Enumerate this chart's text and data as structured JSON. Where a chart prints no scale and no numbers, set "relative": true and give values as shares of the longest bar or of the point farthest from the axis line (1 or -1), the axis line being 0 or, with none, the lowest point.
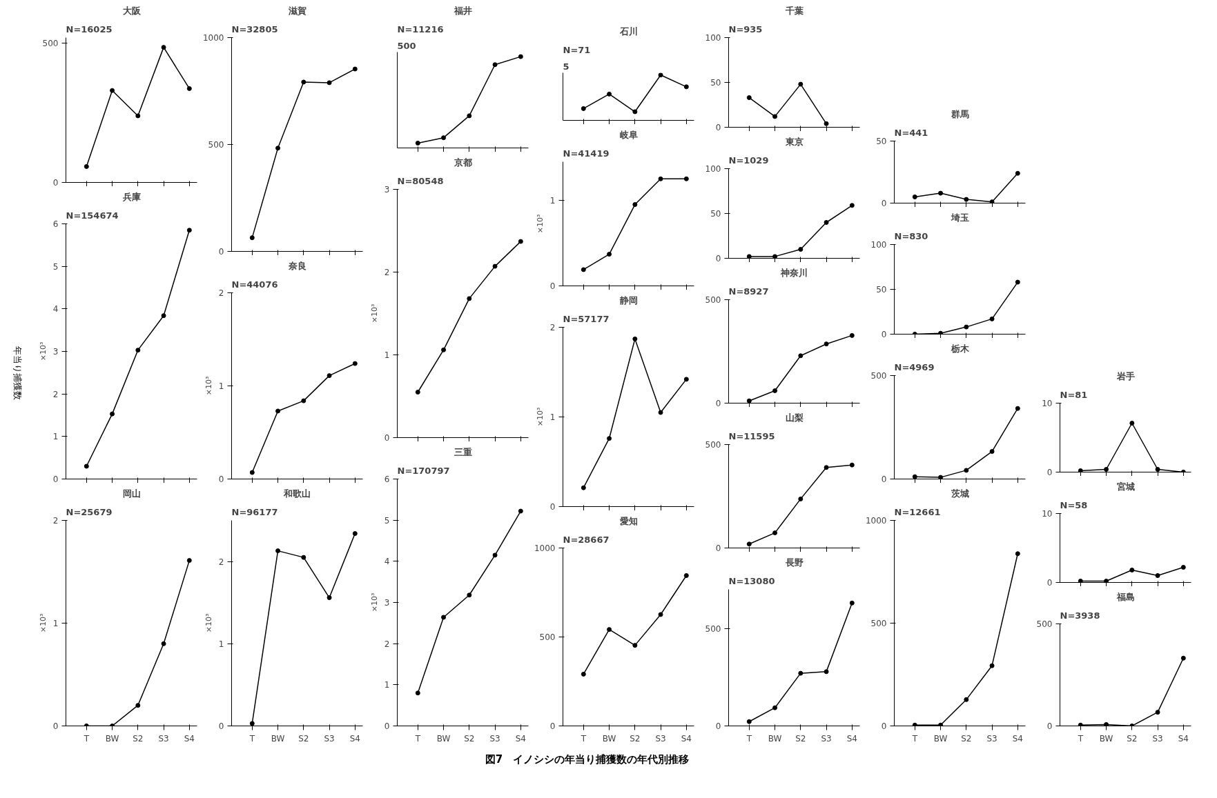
{
  "chart_data": [
    {
      "type": "line",
      "title": "大阪",
      "annotations": [
        "N=16025"
      ],
      "categories": [
        null,
        null,
        null,
        null,
        null
      ],
      "values": [
        57,
        330,
        239,
        485,
        337
      ],
      "ylim": [
        0,
        520
      ],
      "yticks": [
        0,
        500
      ],
      "tick_labels": "y",
      "marker": "circle",
      "color": "#000000"
    },
    {
      "type": "line",
      "title": "兵庫",
      "ylabel": "×10³",
      "annotations": [
        "N=154674"
      ],
      "categories": [
        null,
        null,
        null,
        null,
        null
      ],
      "values": [
        0.3,
        1.53,
        3.03,
        3.84,
        5.85
      ],
      "ylim": [
        0,
        6
      ],
      "yticks": [
        0,
        1,
        2,
        3,
        4,
        5,
        6
      ],
      "tick_labels": "y",
      "marker": "circle",
      "color": "#000000"
    },
    {
      "type": "line",
      "title": "岡山",
      "ylabel": "×10³",
      "annotations": [
        "N=25679"
      ],
      "categories": [
        "T",
        "BW",
        "S2",
        "S3",
        "S4"
      ],
      "values": [
        0,
        0,
        0.2,
        0.8,
        1.61
      ],
      "ylim": [
        0,
        2
      ],
      "yticks": [
        0,
        1,
        2
      ],
      "marker": "circle",
      "color": "#000000"
    },
    {
      "type": "line",
      "title": "滋賀",
      "annotations": [
        "N=32805"
      ],
      "categories": [
        null,
        null,
        null,
        null,
        null
      ],
      "values": [
        64,
        483,
        792,
        789,
        853
      ],
      "ylim": [
        0,
        1000
      ],
      "yticks": [
        0,
        500,
        1000
      ],
      "tick_labels": "y",
      "marker": "circle",
      "color": "#000000"
    },
    {
      "type": "line",
      "title": "奈良",
      "ylabel": "×10³",
      "annotations": [
        "N=44076"
      ],
      "categories": [
        null,
        null,
        null,
        null,
        null
      ],
      "values": [
        0.07,
        0.73,
        0.84,
        1.11,
        1.24
      ],
      "ylim": [
        0,
        2
      ],
      "yticks": [
        0,
        1,
        2
      ],
      "tick_labels": "y",
      "marker": "circle",
      "color": "#000000"
    },
    {
      "type": "line",
      "title": "和歌山",
      "ylabel": "×10³",
      "annotations": [
        "N=96177"
      ],
      "categories": [
        "T",
        "BW",
        "S2",
        "S3",
        "S4"
      ],
      "values": [
        0.03,
        2.13,
        2.05,
        1.56,
        2.34
      ],
      "ylim": [
        0,
        2.5
      ],
      "yticks": [
        0,
        1,
        2
      ],
      "marker": "circle",
      "color": "#000000"
    },
    {
      "type": "line",
      "title": "福井",
      "annotations": [
        "500",
        "N=11216"
      ],
      "categories": [
        null,
        null,
        null,
        null,
        null
      ],
      "values": [
        0.053,
        0.112,
        0.352,
        0.912,
        1
      ],
      "relative": true,
      "tick_labels": false,
      "marker": "circle",
      "color": "#000000"
    },
    {
      "type": "line",
      "title": "京都",
      "ylabel": "×10³",
      "annotations": [
        "N=80548"
      ],
      "categories": [
        null,
        null,
        null,
        null,
        null
      ],
      "values": [
        0.55,
        1.06,
        1.68,
        2.07,
        2.37
      ],
      "ylim": [
        0,
        3
      ],
      "yticks": [
        0,
        1,
        2,
        3
      ],
      "tick_labels": "y",
      "marker": "circle",
      "color": "#000000"
    },
    {
      "type": "line",
      "title": "三重",
      "ylabel": "×10³",
      "annotations": [
        "N=170797"
      ],
      "categories": [
        "T",
        "BW",
        "S2",
        "S3",
        "S4"
      ],
      "values": [
        0.8,
        2.64,
        3.18,
        4.15,
        5.22
      ],
      "ylim": [
        0,
        6
      ],
      "yticks": [
        0,
        1,
        2,
        3,
        4,
        5,
        6
      ],
      "marker": "circle",
      "color": "#000000"
    },
    {
      "type": "line",
      "title": "石川",
      "annotations": [
        "5",
        "N=71"
      ],
      "categories": [
        null,
        null,
        null,
        null,
        null
      ],
      "values": [
        0.26,
        0.58,
        0.19,
        1,
        0.74
      ],
      "relative": true,
      "tick_labels": false,
      "marker": "circle",
      "color": "#000000"
    },
    {
      "type": "line",
      "title": "岐阜",
      "ylabel": "×10³",
      "annotations": [
        "N=41419"
      ],
      "categories": [
        null,
        null,
        null,
        null,
        null
      ],
      "values": [
        0.19,
        0.37,
        0.95,
        1.25,
        1.25
      ],
      "ylim": [
        0,
        1.45
      ],
      "yticks": [
        0,
        1
      ],
      "tick_labels": "y",
      "marker": "circle",
      "color": "#000000"
    },
    {
      "type": "line",
      "title": "静岡",
      "ylabel": "×10³",
      "annotations": [
        "N=57177"
      ],
      "categories": [
        null,
        null,
        null,
        null,
        null
      ],
      "values": [
        0.21,
        0.76,
        1.87,
        1.05,
        1.42
      ],
      "ylim": [
        0,
        2
      ],
      "yticks": [
        0,
        1,
        2
      ],
      "tick_labels": "y",
      "marker": "circle",
      "color": "#000000"
    },
    {
      "type": "line",
      "title": "愛知",
      "annotations": [
        "N=28667"
      ],
      "categories": [
        "T",
        "BW",
        "S2",
        "S3",
        "S4"
      ],
      "values": [
        291,
        542,
        453,
        626,
        845
      ],
      "ylim": [
        0,
        1000
      ],
      "yticks": [
        0,
        500,
        1000
      ],
      "marker": "circle",
      "color": "#000000"
    },
    {
      "type": "line",
      "title": "千葉",
      "annotations": [
        "N=935"
      ],
      "categories": [
        null,
        null,
        null,
        null,
        null
      ],
      "values": [
        33,
        12,
        48,
        4,
        null
      ],
      "ylim": [
        0,
        100
      ],
      "yticks": [
        0,
        50,
        100
      ],
      "tick_labels": "y",
      "marker": "circle",
      "color": "#000000"
    },
    {
      "type": "line",
      "title": "東京",
      "annotations": [
        "N=1029"
      ],
      "categories": [
        null,
        null,
        null,
        null,
        null
      ],
      "values": [
        2,
        2,
        10,
        40,
        59
      ],
      "ylim": [
        0,
        100
      ],
      "yticks": [
        0,
        50,
        100
      ],
      "tick_labels": "y",
      "marker": "circle",
      "color": "#000000"
    },
    {
      "type": "line",
      "title": "神奈川",
      "annotations": [
        "N=8927"
      ],
      "categories": [
        null,
        null,
        null,
        null,
        null
      ],
      "values": [
        11,
        60,
        229,
        286,
        327
      ],
      "ylim": [
        0,
        500
      ],
      "yticks": [
        0,
        500
      ],
      "tick_labels": "y",
      "marker": "circle",
      "color": "#000000"
    },
    {
      "type": "line",
      "title": "山梨",
      "annotations": [
        "N=11595"
      ],
      "categories": [
        null,
        null,
        null,
        null,
        null
      ],
      "values": [
        19,
        73,
        237,
        389,
        401
      ],
      "ylim": [
        0,
        500
      ],
      "yticks": [
        0,
        500
      ],
      "tick_labels": "y",
      "marker": "circle",
      "color": "#000000"
    },
    {
      "type": "line",
      "title": "長野",
      "annotations": [
        "N=13080"
      ],
      "categories": [
        "T",
        "BW",
        "S2",
        "S3",
        "S4"
      ],
      "values": [
        22,
        93,
        270,
        278,
        630
      ],
      "ylim": [
        0,
        700
      ],
      "yticks": [
        0,
        500
      ],
      "marker": "circle",
      "color": "#000000"
    },
    {
      "type": "line",
      "title": "群馬",
      "annotations": [
        "N=441"
      ],
      "categories": [
        null,
        null,
        null,
        null,
        null
      ],
      "values": [
        5,
        8,
        3,
        1,
        24
      ],
      "ylim": [
        0,
        50
      ],
      "yticks": [
        0,
        50
      ],
      "tick_labels": "y",
      "marker": "circle",
      "color": "#000000"
    },
    {
      "type": "line",
      "title": "埼玉",
      "annotations": [
        "N=830"
      ],
      "categories": [
        null,
        null,
        null,
        null,
        null
      ],
      "values": [
        0,
        1,
        8,
        17,
        58
      ],
      "ylim": [
        0,
        100
      ],
      "yticks": [
        0,
        50,
        100
      ],
      "tick_labels": "y",
      "marker": "circle",
      "color": "#000000"
    },
    {
      "type": "line",
      "title": "栃木",
      "annotations": [
        "N=4969"
      ],
      "categories": [
        null,
        null,
        null,
        null,
        null
      ],
      "values": [
        11,
        8,
        42,
        133,
        341
      ],
      "ylim": [
        0,
        500
      ],
      "yticks": [
        0,
        500
      ],
      "tick_labels": "y",
      "marker": "circle",
      "color": "#000000"
    },
    {
      "type": "line",
      "title": "茨城",
      "annotations": [
        "N=12661"
      ],
      "categories": [
        "T",
        "BW",
        "S2",
        "S3",
        "S4"
      ],
      "values": [
        4,
        4,
        128,
        293,
        838
      ],
      "ylim": [
        0,
        1000
      ],
      "yticks": [
        0,
        500,
        1000
      ],
      "marker": "circle",
      "color": "#000000"
    },
    {
      "type": "line",
      "title": "岩手",
      "annotations": [
        "N=81"
      ],
      "categories": [
        null,
        null,
        null,
        null,
        null
      ],
      "values": [
        0.2,
        0.4,
        7.1,
        0.4,
        0
      ],
      "ylim": [
        0,
        10
      ],
      "yticks": [
        0,
        10
      ],
      "tick_labels": "y",
      "marker": "circle",
      "color": "#000000"
    },
    {
      "type": "line",
      "title": "宮城",
      "annotations": [
        "N=58"
      ],
      "categories": [
        null,
        null,
        null,
        null,
        null
      ],
      "values": [
        0.2,
        0.2,
        1.8,
        1,
        2.2
      ],
      "ylim": [
        0,
        10
      ],
      "yticks": [
        0,
        10
      ],
      "tick_labels": "y",
      "marker": "circle",
      "color": "#000000"
    },
    {
      "type": "line",
      "title": "福島",
      "annotations": [
        "N=3938"
      ],
      "categories": [
        "T",
        "BW",
        "S2",
        "S3",
        "S4"
      ],
      "values": [
        4,
        7,
        0,
        67,
        332
      ],
      "ylim": [
        0,
        500
      ],
      "yticks": [
        0,
        500
      ],
      "marker": "circle",
      "color": "#000000"
    },
    {
      "type": "other",
      "title": "図7　イノシシの年当り捕獲数の年代別推移",
      "ylabel": "年当り捕獲数"
    }
  ]
}
